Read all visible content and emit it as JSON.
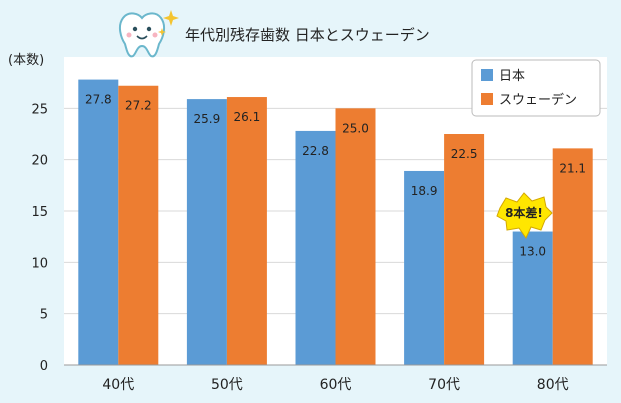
{
  "chart_data": {
    "type": "bar",
    "title": "年代別残存歯数 日本とスウェーデン",
    "ylabel": "(本数)",
    "ylim": [
      0,
      30
    ],
    "yticks": [
      0,
      5,
      10,
      15,
      20,
      25
    ],
    "grid": true,
    "legend_position": "top-right",
    "categories": [
      "40代",
      "50代",
      "60代",
      "70代",
      "80代"
    ],
    "series": [
      {
        "name": "日本",
        "color": "#5b9bd5",
        "values": [
          27.8,
          25.9,
          22.8,
          18.9,
          13.0
        ],
        "labels": [
          "27.8",
          "25.9",
          "22.8",
          "18.9",
          "13.0"
        ]
      },
      {
        "name": "スウェーデン",
        "color": "#ed7d31",
        "values": [
          27.2,
          26.1,
          25.0,
          22.5,
          21.1
        ],
        "labels": [
          "27.2",
          "26.1",
          "25.0",
          "22.5",
          "21.1"
        ]
      }
    ],
    "annotation": {
      "text": "8本差!",
      "category": "80代",
      "value": 17
    }
  },
  "colors": {
    "background": "#e6f5fa",
    "plot_background": "#ffffff",
    "callout_fill": "#ffe600"
  },
  "icons": [
    "tooth-mascot-icon",
    "sparkle-icon"
  ]
}
